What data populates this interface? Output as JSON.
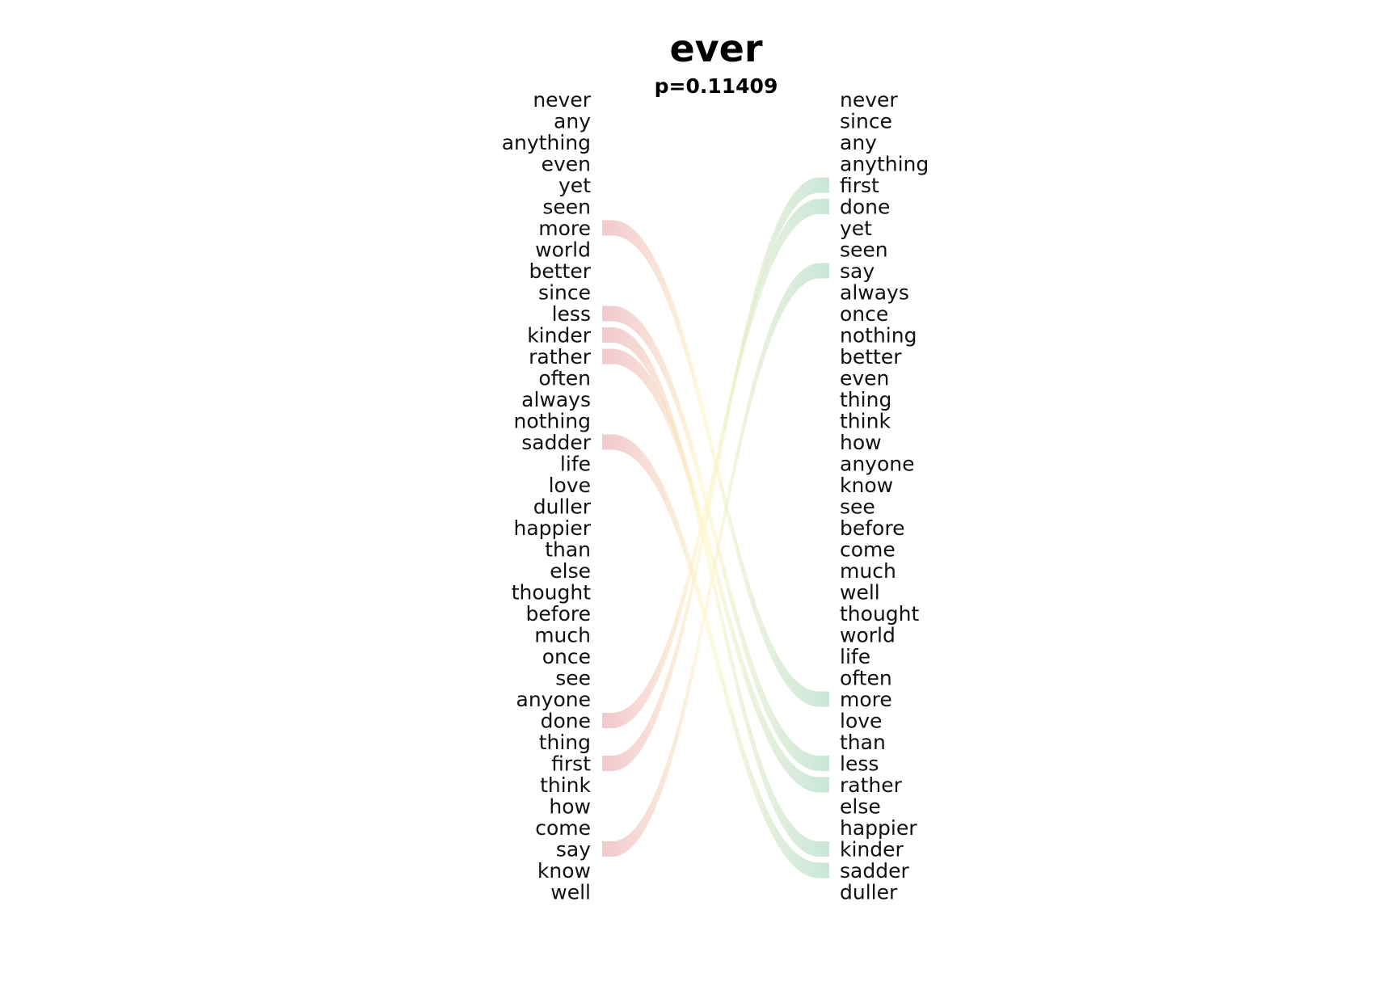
{
  "chart_data": {
    "type": "slope",
    "title": "ever",
    "subtitle": "p=0.11409",
    "left_words": [
      "never",
      "any",
      "anything",
      "even",
      "yet",
      "seen",
      "more",
      "world",
      "better",
      "since",
      "less",
      "kinder",
      "rather",
      "often",
      "always",
      "nothing",
      "sadder",
      "life",
      "love",
      "duller",
      "happier",
      "than",
      "else",
      "thought",
      "before",
      "much",
      "once",
      "see",
      "anyone",
      "done",
      "thing",
      "first",
      "think",
      "how",
      "come",
      "say",
      "know",
      "well"
    ],
    "right_words": [
      "never",
      "since",
      "any",
      "anything",
      "first",
      "done",
      "yet",
      "seen",
      "say",
      "always",
      "once",
      "nothing",
      "better",
      "even",
      "thing",
      "think",
      "how",
      "anyone",
      "know",
      "see",
      "before",
      "come",
      "much",
      "well",
      "thought",
      "world",
      "life",
      "often",
      "more",
      "love",
      "than",
      "less",
      "rather",
      "else",
      "happier",
      "kinder",
      "sadder",
      "duller"
    ],
    "links": [
      "more",
      "less",
      "kinder",
      "rather",
      "sadder",
      "done",
      "first",
      "say"
    ],
    "colors": {
      "falling_start": "#e8a5ae",
      "mid": "#fff6c8",
      "rising_end": "#a6d6c0",
      "text": "#111111"
    }
  }
}
